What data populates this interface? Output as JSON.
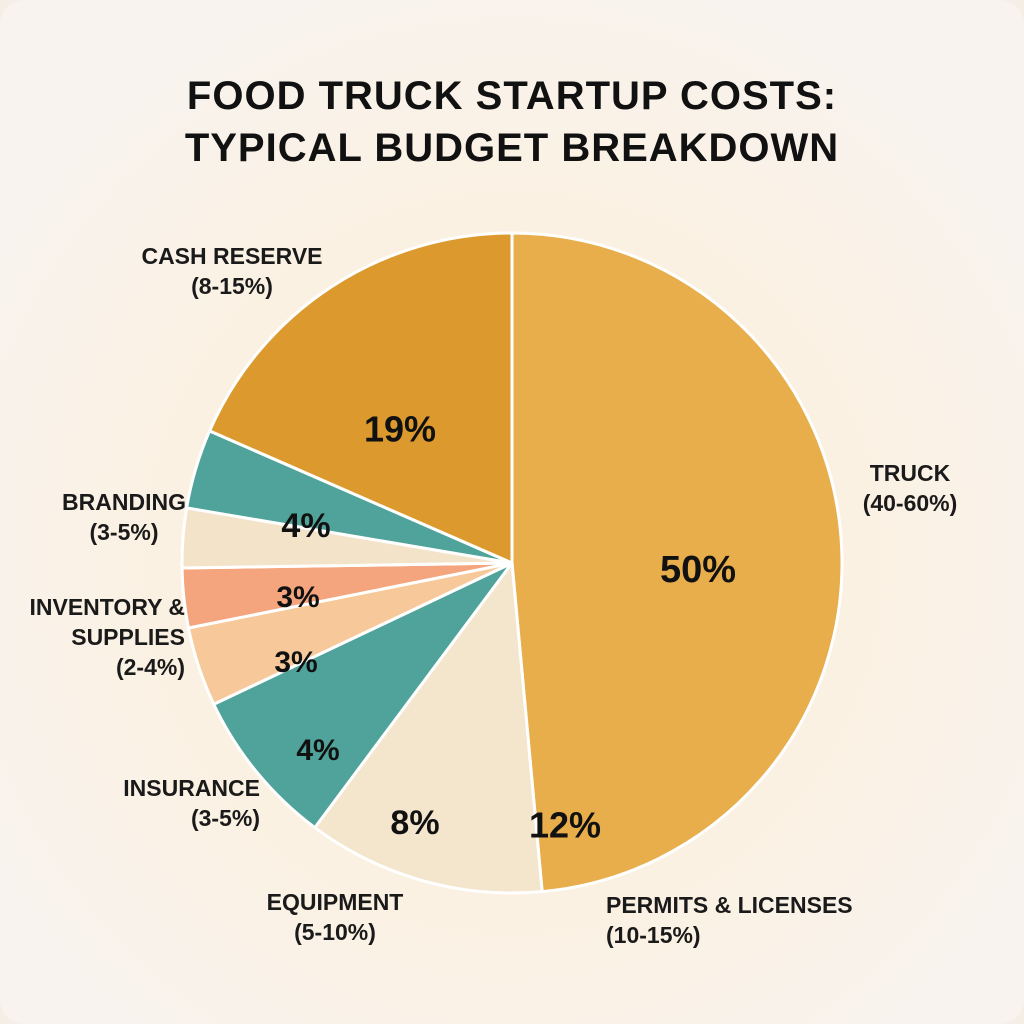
{
  "chart_data": {
    "type": "pie",
    "title": "FOOD TRUCK STARTUP COSTS: TYPICAL BUDGET BREAKDOWN",
    "categories": [
      "TRUCK",
      "PERMITS & LICENSES",
      "EQUIPMENT",
      "INSURANCE",
      null,
      "INVENTORY & SUPPLIES",
      "BRANDING",
      "CASH RESERVE"
    ],
    "ranges": [
      "(40-60%)",
      "(10-15%)",
      "(5-10%)",
      "(3-5%)",
      null,
      "(2-4%)",
      "(3-5%)",
      "(8-15%)"
    ],
    "values": [
      50,
      12,
      8,
      4,
      3,
      3,
      4,
      19
    ],
    "value_labels": [
      "50%",
      "12%",
      "8%",
      "4%",
      "3%",
      "3%",
      "4%",
      "19%"
    ],
    "colors": [
      "#E8AE4C",
      "#F3E6CC",
      "#4FA39A",
      "#F7C99A",
      "#F4A57D",
      "#F3E4C9",
      "#4FA39A",
      "#DC9A2E"
    ]
  }
}
